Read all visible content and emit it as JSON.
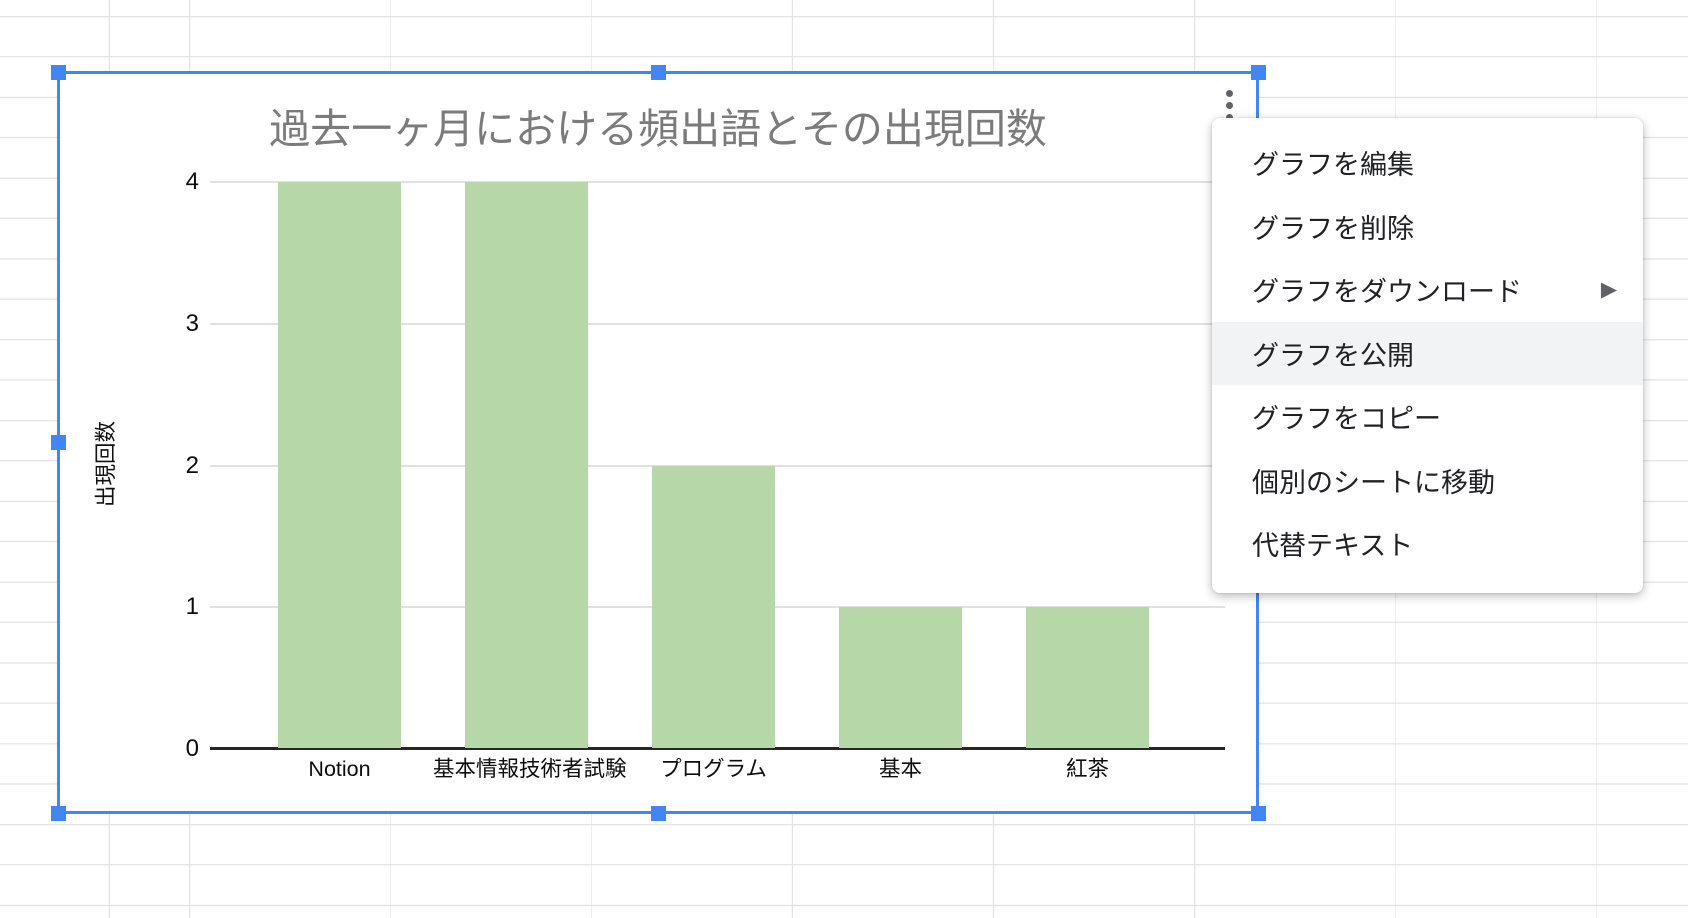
{
  "app": {
    "surface": "spreadsheet",
    "state": "chart-selected-with-context-menu"
  },
  "chart_data": {
    "type": "bar",
    "title": "過去一ヶ月における頻出語とその出現回数",
    "categories": [
      "Notion",
      "基本情報技術者試験",
      "プログラム",
      "基本",
      "紅茶"
    ],
    "values": [
      4,
      4,
      2,
      1,
      1
    ],
    "xlabel": "",
    "ylabel": "出現回数",
    "ylim": [
      0,
      4
    ],
    "yticks": [
      0,
      1,
      2,
      3,
      4
    ],
    "grid": true,
    "legend": false,
    "bar_color": "#b6d7a8",
    "title_color": "#7b7b7b"
  },
  "chart_menu_button": {
    "icon": "kebab-menu-icon"
  },
  "context_menu": {
    "submenu_arrow": "▶",
    "items": [
      {
        "label": "グラフを編集",
        "highlighted": false,
        "has_submenu": false
      },
      {
        "label": "グラフを削除",
        "highlighted": false,
        "has_submenu": false
      },
      {
        "label": "グラフをダウンロード",
        "highlighted": false,
        "has_submenu": true
      },
      {
        "label": "グラフを公開",
        "highlighted": true,
        "has_submenu": false
      },
      {
        "label": "グラフをコピー",
        "highlighted": false,
        "has_submenu": false
      },
      {
        "label": "個別のシートに移動",
        "highlighted": false,
        "has_submenu": false
      },
      {
        "label": "代替テキスト",
        "highlighted": false,
        "has_submenu": false
      }
    ]
  },
  "colors": {
    "selection_blue": "#4285f4",
    "bar_green": "#b6d7a8",
    "sheet_gridline": "#e2e2e2",
    "menu_highlight": "#f1f3f4",
    "axis_black": "#262626"
  }
}
